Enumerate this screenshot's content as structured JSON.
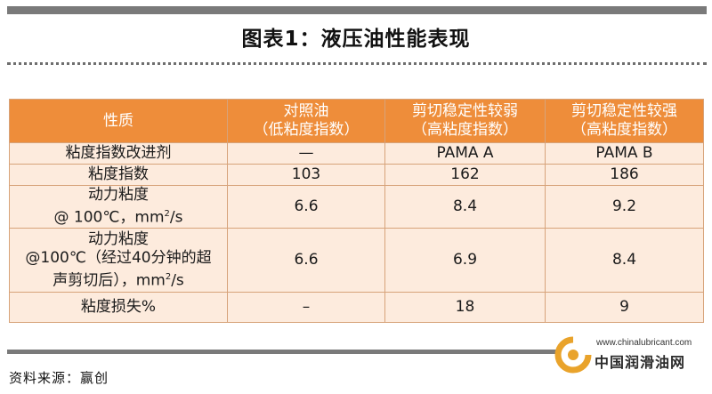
{
  "title": "图表1：液压油性能表现",
  "table": {
    "headers": [
      {
        "line1": "性质",
        "line2": ""
      },
      {
        "line1": "对照油",
        "line2": "（低粘度指数）"
      },
      {
        "line1": "剪切稳定性较弱",
        "line2": "（高粘度指数）"
      },
      {
        "line1": "剪切稳定性较强",
        "line2": "（高粘度指数）"
      }
    ],
    "rows": [
      {
        "label1": "粘度指数改进剂",
        "label2": "",
        "label3": "",
        "label_sup": "",
        "label_tail": "",
        "c1": "—",
        "c2": "PAMA A",
        "c3": "PAMA B"
      },
      {
        "label1": "粘度指数",
        "label2": "",
        "label3": "",
        "label_sup": "",
        "label_tail": "",
        "c1": "103",
        "c2": "162",
        "c3": "186"
      },
      {
        "label1": "动力粘度",
        "label2": "@ 100℃，mm",
        "label3": "",
        "label_sup": "2",
        "label_tail": "/s",
        "c1": "6.6",
        "c2": "8.4",
        "c3": "9.2"
      },
      {
        "label1": "动力粘度",
        "label2": "@100℃（经过40分钟的超",
        "label3": "声剪切后），mm",
        "label_sup": "2",
        "label_tail": "/s",
        "c1": "6.6",
        "c2": "6.9",
        "c3": "8.4"
      },
      {
        "label1": "粘度损失%",
        "label2": "",
        "label3": "",
        "label_sup": "",
        "label_tail": "",
        "c1": "–",
        "c2": "18",
        "c3": "9"
      }
    ]
  },
  "source": "资料来源：赢创",
  "watermark": {
    "url": "www.chinalubricant.com",
    "name": "中国润滑油网"
  },
  "colors": {
    "header_bg": "#ee8d3a",
    "cell_bg": "#fdebdd",
    "border": "#d7a37a",
    "bar": "#7a7a7a"
  }
}
